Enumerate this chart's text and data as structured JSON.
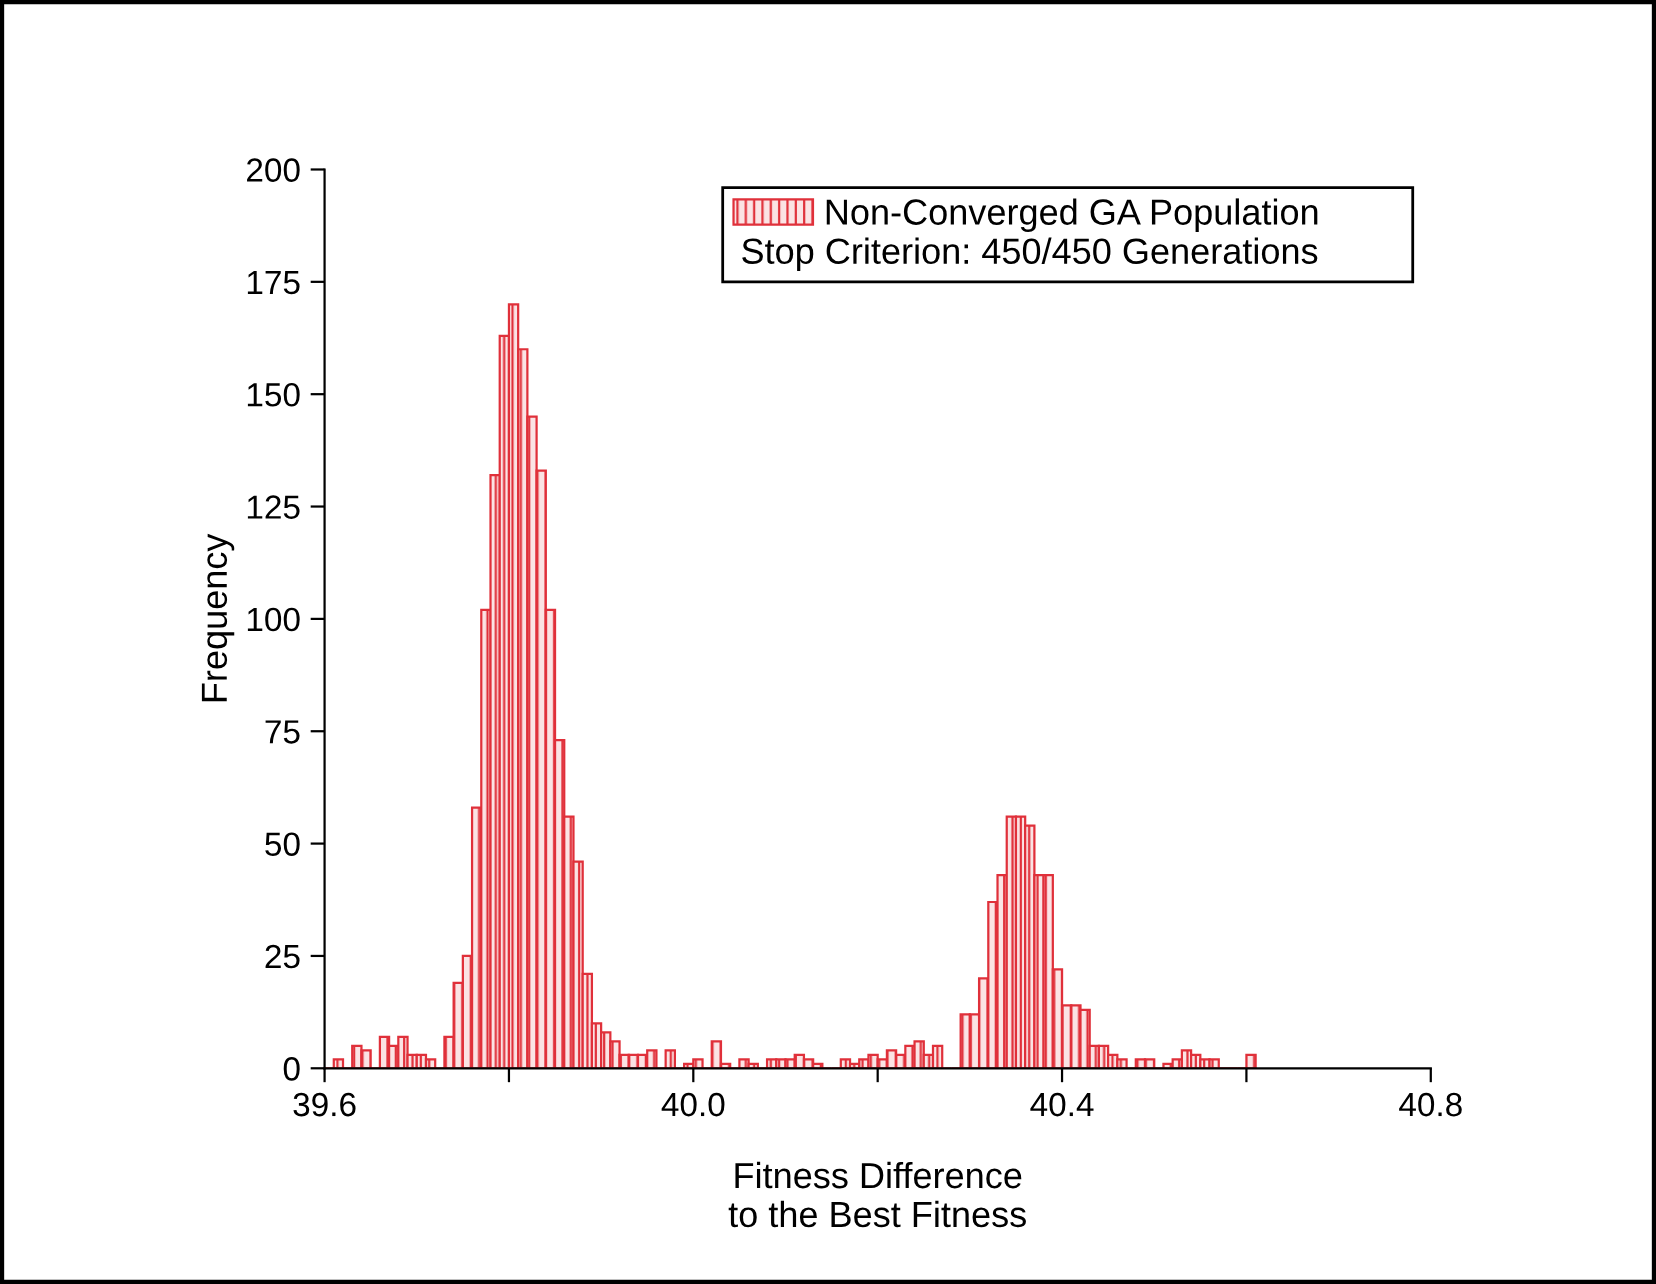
{
  "chart_data": {
    "type": "histogram",
    "xlabel": "Fitness Difference\nto the Best Fitness",
    "ylabel": "Frequency",
    "bins": [
      39.6,
      39.61,
      39.62,
      39.63,
      39.64,
      39.65,
      39.66,
      39.67,
      39.68,
      39.69,
      39.7,
      39.71,
      39.72,
      39.73,
      39.74,
      39.75,
      39.76,
      39.77,
      39.78,
      39.79,
      39.8,
      39.81,
      39.82,
      39.83,
      39.84,
      39.85,
      39.86,
      39.87,
      39.88,
      39.89,
      39.9,
      39.91,
      39.92,
      39.93,
      39.94,
      39.95,
      39.96,
      39.97,
      39.98,
      39.99,
      40.0,
      40.01,
      40.02,
      40.03,
      40.04,
      40.05,
      40.06,
      40.07,
      40.08,
      40.09,
      40.1,
      40.11,
      40.12,
      40.13,
      40.14,
      40.15,
      40.16,
      40.17,
      40.18,
      40.19,
      40.2,
      40.21,
      40.22,
      40.23,
      40.24,
      40.25,
      40.26,
      40.27,
      40.28,
      40.29,
      40.3,
      40.31,
      40.32,
      40.33,
      40.34,
      40.35,
      40.36,
      40.37,
      40.38,
      40.39,
      40.4,
      40.41,
      40.42,
      40.43,
      40.44,
      40.45,
      40.46,
      40.47,
      40.48,
      40.49,
      40.5,
      40.51,
      40.52,
      40.53,
      40.54,
      40.55,
      40.56,
      40.57,
      40.58,
      40.59,
      40.6,
      40.61
    ],
    "series": [
      {
        "name": "Non-Converged GA Population",
        "color": "#e0303a",
        "values": [
          0,
          2,
          0,
          5,
          4,
          0,
          7,
          5,
          7,
          3,
          3,
          2,
          0,
          7,
          19,
          25,
          58,
          102,
          132,
          163,
          170,
          160,
          145,
          133,
          102,
          73,
          56,
          46,
          21,
          10,
          8,
          6,
          3,
          3,
          3,
          4,
          0,
          4,
          0,
          1,
          2,
          0,
          6,
          1,
          0,
          2,
          1,
          0,
          2,
          2,
          2,
          3,
          2,
          1,
          0,
          0,
          2,
          1,
          2,
          3,
          2,
          4,
          3,
          5,
          6,
          3,
          5,
          0,
          0,
          12,
          12,
          20,
          37,
          43,
          56,
          56,
          54,
          43,
          43,
          22,
          14,
          14,
          13,
          5,
          5,
          3,
          2,
          0,
          2,
          2,
          0,
          1,
          2,
          4,
          3,
          2,
          2,
          0,
          0,
          0,
          3
        ]
      }
    ],
    "annotations": [
      "Stop Criterion: 450/450 Generations"
    ],
    "xlim": [
      39.6,
      40.8
    ],
    "xticks": [
      39.6,
      {
        "value": 39.8,
        "label": null
      },
      {
        "value": 40.0,
        "label": "40.0"
      },
      {
        "value": 40.2,
        "label": null
      },
      40.4,
      {
        "value": 40.6,
        "label": null
      },
      40.8
    ],
    "ylim": [
      0,
      200
    ],
    "yticks": [
      0,
      25,
      50,
      75,
      100,
      125,
      150,
      175,
      200
    ],
    "legend": "top right",
    "grid": false
  }
}
